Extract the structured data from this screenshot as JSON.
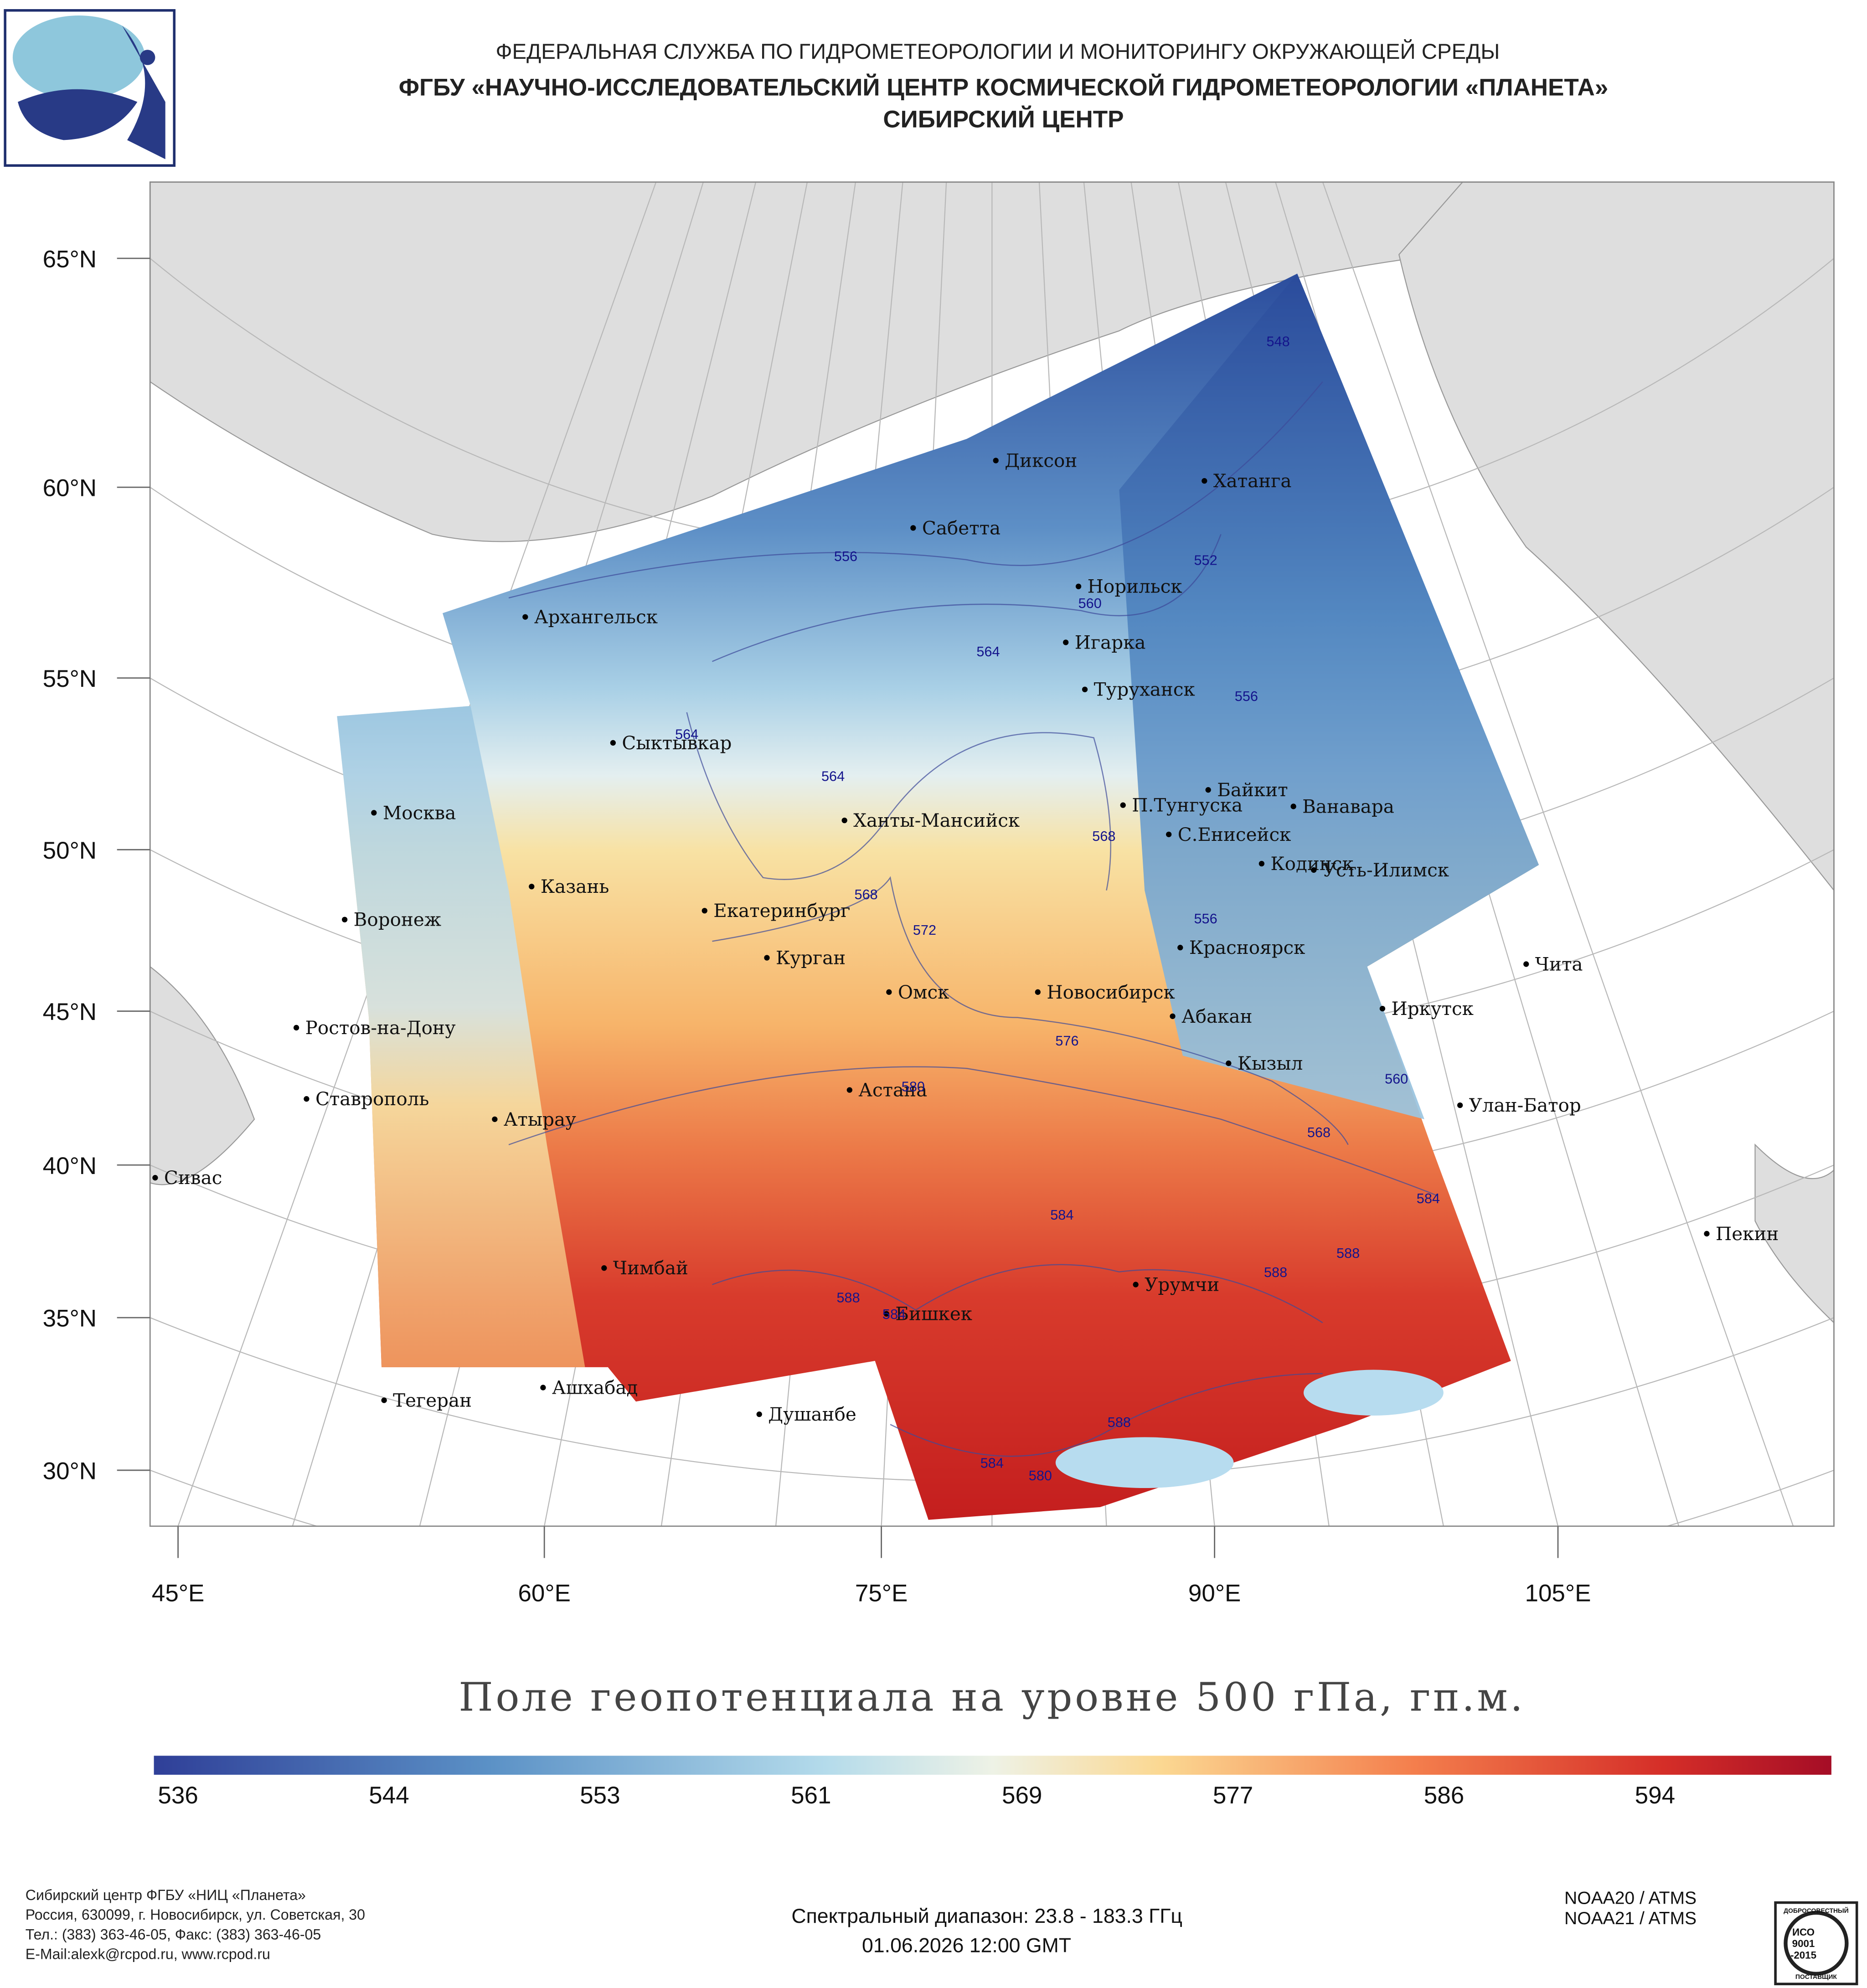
{
  "header": {
    "lines": [
      "ФЕДЕРАЛЬНАЯ СЛУЖБА ПО ГИДРОМЕТЕОРОЛОГИИ И МОНИТОРИНГУ ОКРУЖАЮЩЕЙ СРЕДЫ",
      "ФГБУ «НАУЧНО-ИССЛЕДОВАТЕЛЬСКИЙ ЦЕНТР КОСМИЧЕСКОЙ ГИДРОМЕТЕОРОЛОГИИ «ПЛАНЕТА»",
      "СИБИРСКИЙ ЦЕНТР"
    ]
  },
  "map": {
    "lat_labels": [
      "65°N",
      "60°N",
      "55°N",
      "50°N",
      "45°N",
      "40°N",
      "35°N",
      "30°N"
    ],
    "lon_labels": [
      "45°E",
      "60°E",
      "75°E",
      "90°E",
      "105°E"
    ],
    "cities": [
      "Диксон",
      "Хатанга",
      "Сабетта",
      "Норильск",
      "Архангельск",
      "Игарка",
      "Туруханск",
      "Сыктывкар",
      "Байкит",
      "П.Тунгуска",
      "Ванавара",
      "Москва",
      "Ханты-Мансийск",
      "С.Енисейск",
      "Кодинск",
      "Усть-Илимск",
      "Казань",
      "Екатеринбург",
      "Воронеж",
      "Красноярск",
      "Курган",
      "Чита",
      "Омск",
      "Новосибирск",
      "Иркутск",
      "Абакан",
      "Ростов-на-Дону",
      "Кызыл",
      "Астана",
      "Ставрополь",
      "Улан-Батор",
      "Атырау",
      "Сивас",
      "Пекин",
      "Чимбай",
      "Урумчи",
      "Бишкек",
      "Ашхабад",
      "Тегеран",
      "Душанбе"
    ],
    "contour_labels": [
      548,
      552,
      556,
      556,
      556,
      560,
      560,
      564,
      564,
      564,
      568,
      568,
      568,
      572,
      576,
      580,
      580,
      584,
      584,
      584,
      584,
      588,
      588,
      588,
      588
    ]
  },
  "title": "Поле геопотенциала на уровне 500 гПа, гп.м.",
  "colorbar": {
    "ticks": [
      536,
      544,
      553,
      561,
      569,
      577,
      586,
      594
    ]
  },
  "satellites": [
    "NOAA20 / ATMS",
    "NOAA21 / ATMS"
  ],
  "footer": {
    "address": [
      "Сибирский центр ФГБУ «НИЦ «Планета»",
      "Россия, 630099, г. Новосибирск, ул. Советская, 30",
      "Тел.: (383) 363-46-05, Факс: (383) 363-46-05",
      "E-Mail:alexk@rcpod.ru, www.rcpod.ru"
    ],
    "spectral": "Спектральный диапазон: 23.8 - 183.3 ГГц",
    "datetime": "01.06.2026 12:00 GMT"
  },
  "iso_logo": [
    "ДОБРОСОВЕСТНЫЙ",
    "ИСО",
    "9001",
    "-2015",
    "ПОСТАВЩИК"
  ]
}
